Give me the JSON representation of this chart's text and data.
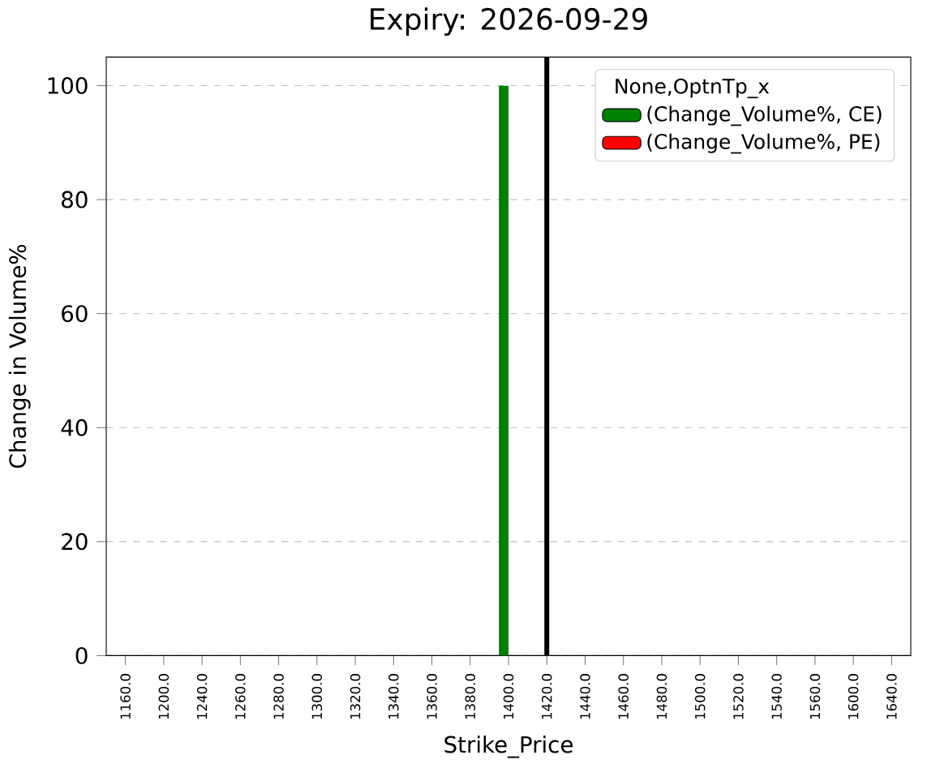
{
  "chart_data": {
    "type": "bar",
    "title": "Expiry: 2026-09-29",
    "xlabel": "Strike_Price",
    "ylabel": "Change in Volume%",
    "legend_title": "None,OptnTp_x",
    "categories": [
      "1160.0",
      "1200.0",
      "1240.0",
      "1260.0",
      "1280.0",
      "1300.0",
      "1320.0",
      "1340.0",
      "1360.0",
      "1380.0",
      "1400.0",
      "1420.0",
      "1440.0",
      "1460.0",
      "1480.0",
      "1500.0",
      "1520.0",
      "1540.0",
      "1560.0",
      "1600.0",
      "1640.0"
    ],
    "series": [
      {
        "name": "(Change_Volume%, CE)",
        "color": "#008000",
        "values": [
          0,
          0,
          0,
          0,
          0,
          0,
          0,
          0,
          0,
          0,
          100,
          0,
          0,
          0,
          0,
          0,
          0,
          0,
          0,
          0,
          0
        ]
      },
      {
        "name": "(Change_Volume%, PE)",
        "color": "#ff0000",
        "values": [
          0,
          0,
          0,
          0,
          0,
          0,
          0,
          0,
          0,
          0,
          0,
          0,
          0,
          0,
          0,
          0,
          0,
          0,
          0,
          0,
          0
        ]
      }
    ],
    "ref_lines": [
      {
        "axis": "x",
        "value": "1420.0",
        "color": "#000000"
      }
    ],
    "ylim": [
      0,
      105
    ],
    "yticks": [
      0,
      20,
      40,
      60,
      80,
      100
    ],
    "grid": "y",
    "legend": "top right"
  }
}
